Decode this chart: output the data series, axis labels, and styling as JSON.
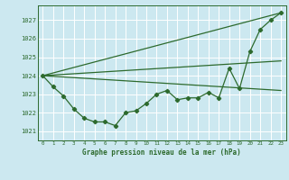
{
  "background_color": "#cce8f0",
  "grid_color": "#ffffff",
  "line_color": "#2d6a2d",
  "title": "Graphe pression niveau de la mer (hPa)",
  "xlim": [
    -0.5,
    23.5
  ],
  "ylim": [
    1020.5,
    1027.8
  ],
  "yticks": [
    1021,
    1022,
    1023,
    1024,
    1025,
    1026,
    1027
  ],
  "xticks": [
    0,
    1,
    2,
    3,
    4,
    5,
    6,
    7,
    8,
    9,
    10,
    11,
    12,
    13,
    14,
    15,
    16,
    17,
    18,
    19,
    20,
    21,
    22,
    23
  ],
  "main_x": [
    0,
    1,
    2,
    3,
    4,
    5,
    6,
    7,
    8,
    9,
    10,
    11,
    12,
    13,
    14,
    15,
    16,
    17,
    18,
    19,
    20,
    21,
    22,
    23
  ],
  "main_y": [
    1024.0,
    1023.4,
    1022.9,
    1022.2,
    1021.7,
    1021.5,
    1021.5,
    1021.3,
    1022.0,
    1022.1,
    1022.5,
    1023.0,
    1023.2,
    1022.7,
    1022.8,
    1022.8,
    1023.1,
    1022.8,
    1024.4,
    1023.3,
    1025.3,
    1026.5,
    1027.0,
    1027.4
  ],
  "trend_lines": [
    {
      "x": [
        0,
        23
      ],
      "y": [
        1024.0,
        1027.4
      ]
    },
    {
      "x": [
        0,
        23
      ],
      "y": [
        1024.0,
        1023.2
      ]
    },
    {
      "x": [
        0,
        23
      ],
      "y": [
        1024.0,
        1024.8
      ]
    }
  ]
}
